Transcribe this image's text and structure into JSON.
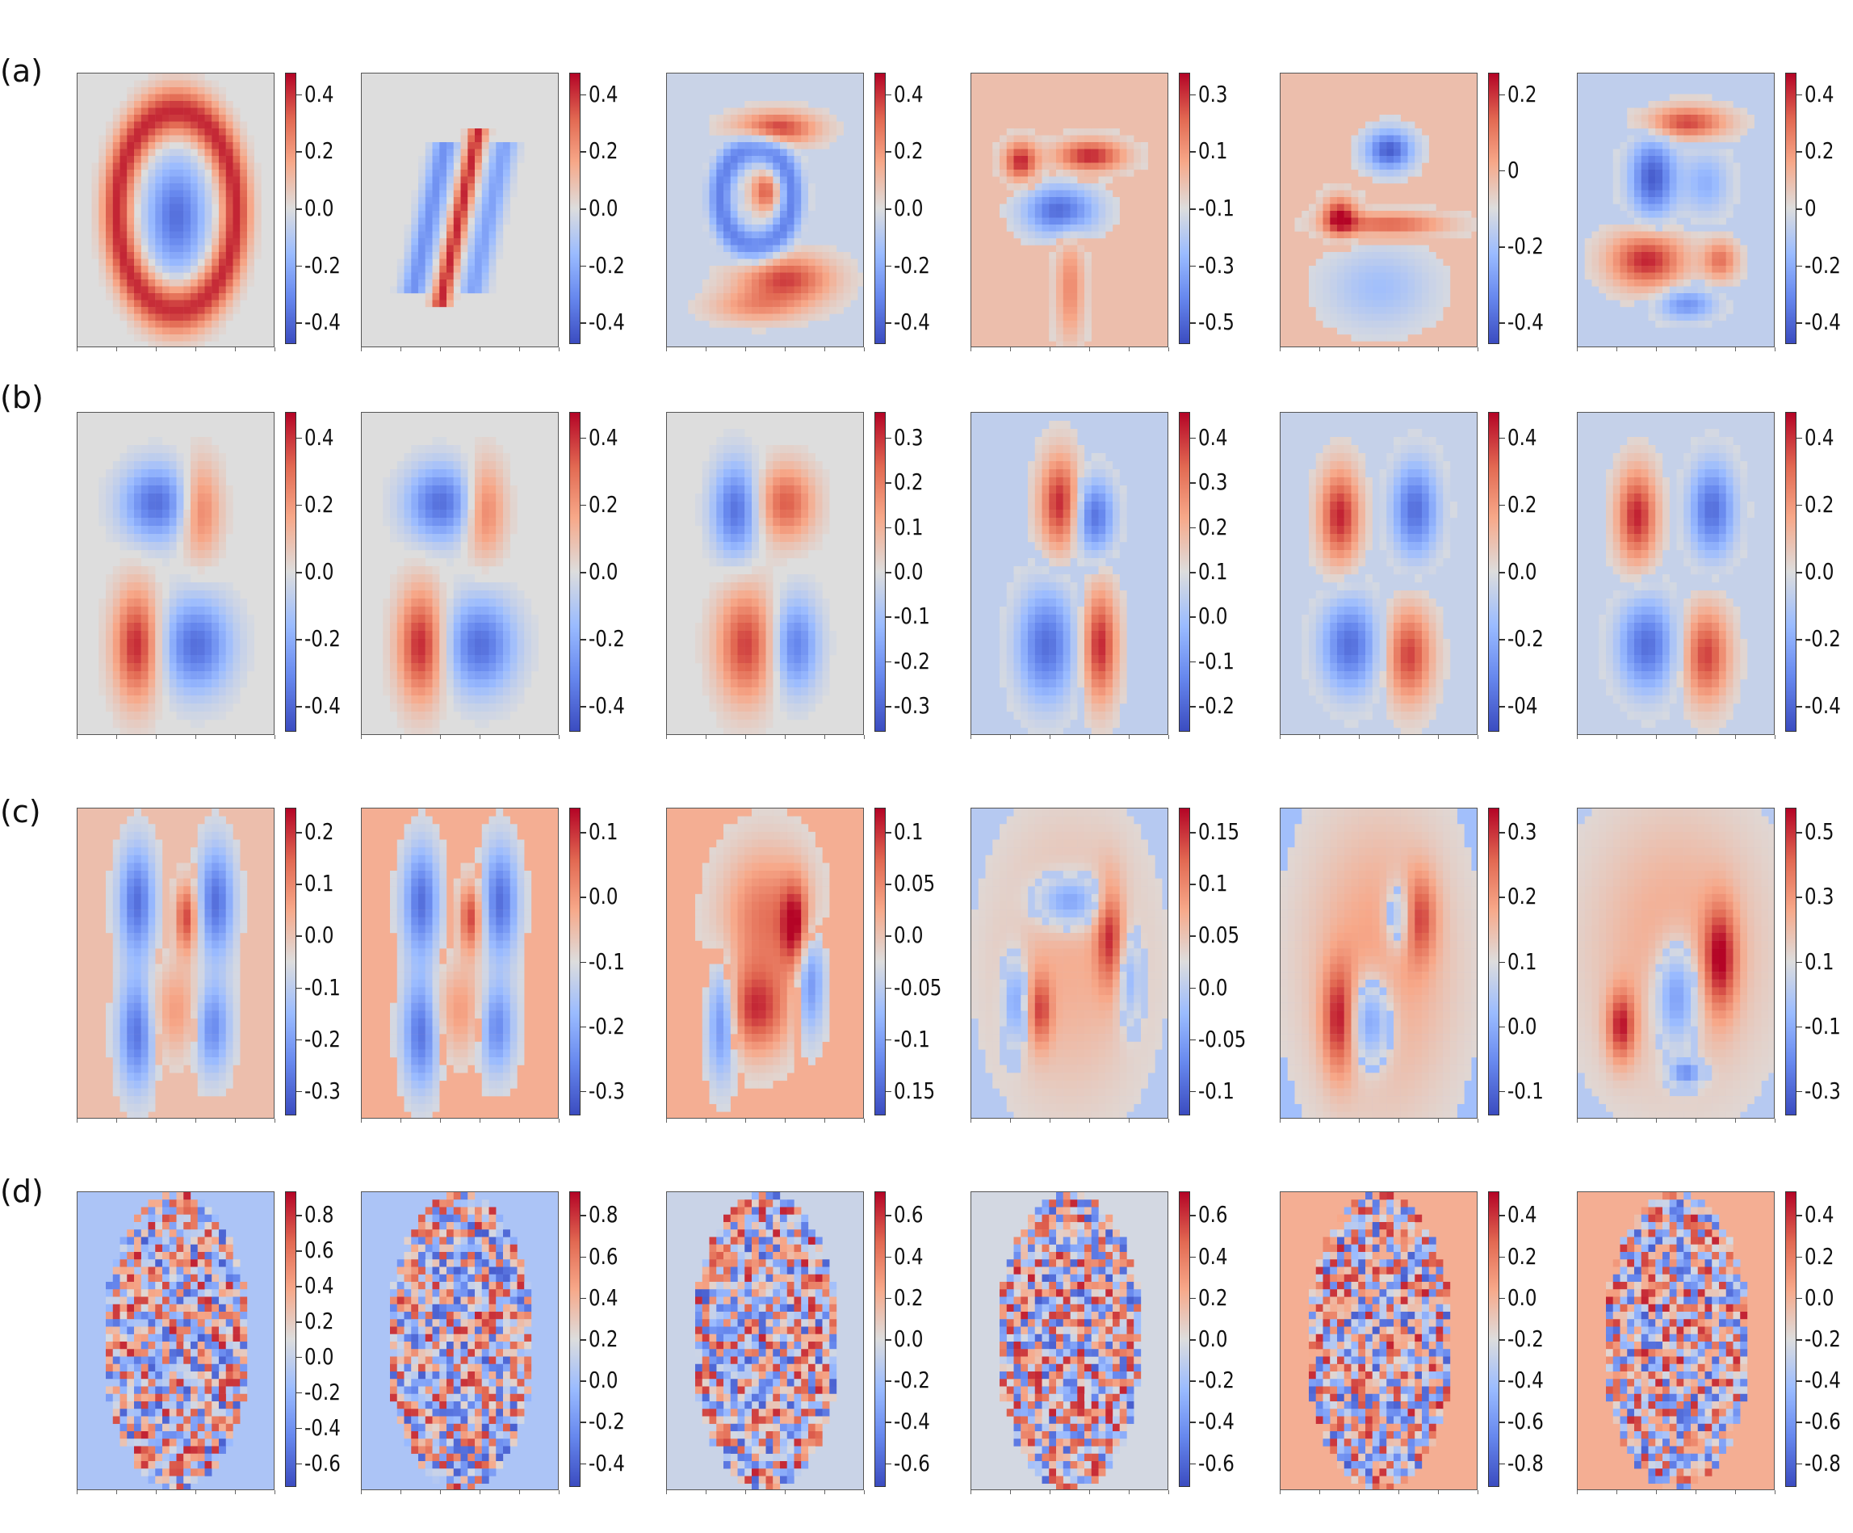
{
  "chart_data": {
    "type": "heatmap",
    "colormap": "coolwarm",
    "grid": false,
    "rows": [
      {
        "label": "(a)",
        "panels": [
          {
            "pattern": "digit0",
            "bg": 0.0,
            "colorbar_ticks": [
              "0.4",
              "0.2",
              "0.0",
              "-0.2",
              "-0.4"
            ]
          },
          {
            "pattern": "digit1",
            "bg": 0.0,
            "colorbar_ticks": [
              "0.4",
              "0.2",
              "0.0",
              "-0.2",
              "-0.4"
            ]
          },
          {
            "pattern": "digit3",
            "bg": -0.1,
            "colorbar_ticks": [
              "0.4",
              "0.2",
              "0.0",
              "-0.2",
              "-0.4"
            ]
          },
          {
            "pattern": "digit7",
            "bg": 0.2,
            "colorbar_ticks": [
              "0.3",
              "0.1",
              "-0.1",
              "-0.3",
              "-0.5"
            ]
          },
          {
            "pattern": "digit4",
            "bg": 0.2,
            "colorbar_ticks": [
              "0.2",
              "0",
              "-0.2",
              "-0.4"
            ]
          },
          {
            "pattern": "digit5",
            "bg": -0.15,
            "colorbar_ticks": [
              "0.4",
              "0.2",
              "0",
              "-0.2",
              "-0.4"
            ]
          }
        ]
      },
      {
        "label": "(b)",
        "panels": [
          {
            "pattern": "eightA",
            "bg": 0.0,
            "colorbar_ticks": [
              "0.4",
              "0.2",
              "0.0",
              "-0.2",
              "-0.4"
            ]
          },
          {
            "pattern": "eightA",
            "bg": 0.0,
            "colorbar_ticks": [
              "0.4",
              "0.2",
              "0.0",
              "-0.2",
              "-0.4"
            ]
          },
          {
            "pattern": "eightB",
            "bg": 0.0,
            "colorbar_ticks": [
              "0.3",
              "0.2",
              "0.1",
              "0.0",
              "-0.1",
              "-0.2",
              "-0.3"
            ]
          },
          {
            "pattern": "eightC",
            "bg": -0.15,
            "colorbar_ticks": [
              "0.4",
              "0.3",
              "0.2",
              "0.1",
              "0.0",
              "-0.1",
              "-0.2"
            ]
          },
          {
            "pattern": "eightD",
            "bg": -0.12,
            "colorbar_ticks": [
              "0.4",
              "0.2",
              "0.0",
              "-0.2",
              "-04"
            ]
          },
          {
            "pattern": "eightD",
            "bg": -0.12,
            "colorbar_ticks": [
              "0.4",
              "0.2",
              "0.0",
              "-0.2",
              "-0.4"
            ]
          }
        ]
      },
      {
        "label": "(c)",
        "panels": [
          {
            "pattern": "hourA",
            "bg": 0.2,
            "colorbar_ticks": [
              "0.2",
              "0.1",
              "0.0",
              "-0.1",
              "-0.2",
              "-0.3"
            ]
          },
          {
            "pattern": "hourA",
            "bg": 0.3,
            "colorbar_ticks": [
              "0.1",
              "0.0",
              "-0.1",
              "-0.2",
              "-0.3"
            ]
          },
          {
            "pattern": "hourB",
            "bg": 0.3,
            "colorbar_ticks": [
              "0.1",
              "0.05",
              "0.0",
              "-0.05",
              "-0.1",
              "0.15"
            ]
          },
          {
            "pattern": "hourC",
            "bg": -0.2,
            "colorbar_ticks": [
              "0.15",
              "0.1",
              "0.05",
              "0.0",
              "-0.05",
              "-0.1"
            ]
          },
          {
            "pattern": "hourD",
            "bg": -0.3,
            "colorbar_ticks": [
              "0.3",
              "0.2",
              "0.1",
              "0.0",
              "-0.1"
            ]
          },
          {
            "pattern": "hourE",
            "bg": -0.2,
            "colorbar_ticks": [
              "0.5",
              "0.3",
              "0.1",
              "-0.1",
              "-0.3"
            ]
          }
        ]
      },
      {
        "label": "(d)",
        "panels": [
          {
            "pattern": "noise",
            "bg": -0.25,
            "colorbar_ticks": [
              "0.8",
              "0.6",
              "0.4",
              "0.2",
              "0.0",
              "-0.2",
              "-0.4",
              "-0.6"
            ]
          },
          {
            "pattern": "noise",
            "bg": -0.25,
            "colorbar_ticks": [
              "0.8",
              "0.6",
              "0.4",
              "0.2",
              "0.0",
              "-0.2",
              "-0.4"
            ]
          },
          {
            "pattern": "noise",
            "bg": -0.1,
            "colorbar_ticks": [
              "0.6",
              "0.4",
              "0.2",
              "0.0",
              "-0.2",
              "-0.4",
              "-0.6"
            ]
          },
          {
            "pattern": "noise",
            "bg": -0.05,
            "colorbar_ticks": [
              "0.6",
              "0.4",
              "0.2",
              "0.0",
              "-0.2",
              "-0.4",
              "-0.6"
            ]
          },
          {
            "pattern": "noise",
            "bg": 0.3,
            "colorbar_ticks": [
              "0.4",
              "0.2",
              "0.0",
              "-0.2",
              "-0.4",
              "-0.6",
              "-0.8"
            ]
          },
          {
            "pattern": "noise",
            "bg": 0.3,
            "colorbar_ticks": [
              "0.4",
              "0.2",
              "0.0",
              "-0.2",
              "-0.4",
              "-0.6",
              "-0.8"
            ]
          }
        ]
      }
    ]
  }
}
